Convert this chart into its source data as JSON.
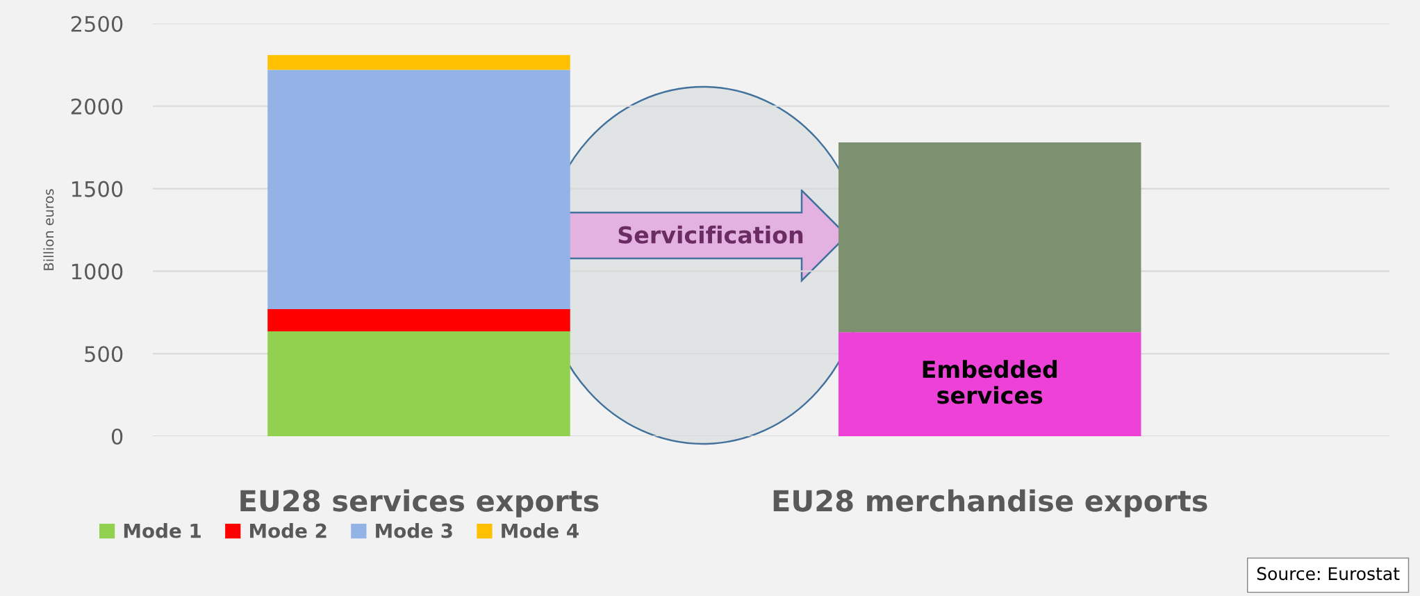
{
  "chart_data": {
    "type": "bar",
    "stacked": true,
    "categories": [
      "EU28 services exports",
      "EU28 merchandise exports"
    ],
    "ylabel": "Billion euros",
    "ylim": [
      0,
      2500
    ],
    "yticks": [
      0,
      500,
      1000,
      1500,
      2000,
      2500
    ],
    "grid": "y",
    "legend": "bottom",
    "series": [
      {
        "name": "Mode 1",
        "color": "#92d050",
        "values": [
          635,
          null
        ]
      },
      {
        "name": "Mode 2",
        "color": "#ff0000",
        "values": [
          135,
          null
        ]
      },
      {
        "name": "Mode 3",
        "color": "#93b3e7",
        "values": [
          1450,
          null
        ]
      },
      {
        "name": "Mode 4",
        "color": "#ffc000",
        "values": [
          90,
          null
        ]
      },
      {
        "name": "Embedded services",
        "color": "#ed41d8",
        "values": [
          null,
          630
        ]
      },
      {
        "color": "#7d9170",
        "values": [
          null,
          1150
        ]
      }
    ],
    "annotations": [
      "Servicification",
      "Source: Eurostat"
    ]
  }
}
